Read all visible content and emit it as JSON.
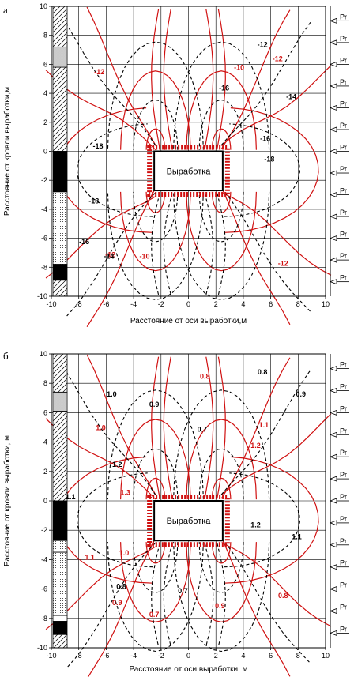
{
  "chart_data": [
    {
      "type": "contour",
      "panel_label": "а",
      "xlabel": "Расстояние от оси выработки,м",
      "ylabel": "Расстояние от кровли выработки,м",
      "xlim": [
        -10,
        10
      ],
      "ylim": [
        -10,
        10
      ],
      "xticks": [
        -10,
        -8,
        -6,
        -4,
        -2,
        0,
        2,
        4,
        6,
        8,
        10
      ],
      "yticks": [
        10,
        8,
        6,
        4,
        2,
        0,
        -2,
        -4,
        -6,
        -8,
        -10
      ],
      "grid": true,
      "opening": {
        "label": "Выработка",
        "x": [
          -2.5,
          2.5
        ],
        "y": [
          -2.7,
          0
        ]
      },
      "pr_label": "Pr",
      "pr_y": [
        9,
        7.5,
        6,
        4.5,
        3,
        1.5,
        0,
        -1.5,
        -3,
        -4.5,
        -6,
        -7.5,
        -9
      ],
      "contour_labels_red": [
        {
          "text": "-12",
          "x": -6.5,
          "y": 5.3
        },
        {
          "text": "-10",
          "x": 3.7,
          "y": 5.6
        },
        {
          "text": "-12",
          "x": 6.5,
          "y": 6.2
        },
        {
          "text": "-12",
          "x": -5.7,
          "y": -7.3
        },
        {
          "text": "-10",
          "x": -3.2,
          "y": -7.4
        },
        {
          "text": "-12",
          "x": 6.9,
          "y": -7.9
        }
      ],
      "contour_labels_black": [
        {
          "text": "-12",
          "x": 5.4,
          "y": 7.2
        },
        {
          "text": "-14",
          "x": 7.5,
          "y": 3.6
        },
        {
          "text": "-18",
          "x": -6.6,
          "y": 0.2
        },
        {
          "text": "-18",
          "x": -6.9,
          "y": -3.6
        },
        {
          "text": "-16",
          "x": 5.6,
          "y": 0.7
        },
        {
          "text": "-16",
          "x": 2.6,
          "y": 4.2
        },
        {
          "text": "-16",
          "x": -7.6,
          "y": -6.4
        },
        {
          "text": "-14",
          "x": -5.8,
          "y": -7.4
        },
        {
          "text": "-18",
          "x": 5.9,
          "y": -0.7
        }
      ]
    },
    {
      "type": "contour",
      "panel_label": "б",
      "xlabel": "Расстояние от оси выработки, м",
      "ylabel": "Расстояние от кровли выработки, м",
      "xlim": [
        -10,
        10
      ],
      "ylim": [
        -10,
        10
      ],
      "xticks": [
        -10,
        -8,
        -6,
        -4,
        -2,
        0,
        2,
        4,
        6,
        8,
        10
      ],
      "yticks": [
        10,
        8,
        6,
        4,
        2,
        0,
        -2,
        -4,
        -6,
        -8,
        -10
      ],
      "grid": true,
      "opening": {
        "label": "Выработка",
        "x": [
          -2.5,
          2.5
        ],
        "y": [
          -2.7,
          0
        ]
      },
      "pr_label": "Pr",
      "pr_y": [
        9,
        7.5,
        6,
        4.5,
        3,
        1.5,
        0,
        -1.5,
        -3,
        -4.5,
        -6,
        -7.5,
        -9
      ],
      "contour_labels_red": [
        {
          "text": "0.8",
          "x": 1.2,
          "y": 8.3
        },
        {
          "text": "1.0",
          "x": -6.4,
          "y": 4.8
        },
        {
          "text": "1.1",
          "x": 5.5,
          "y": 5.0
        },
        {
          "text": "1.2",
          "x": 4.9,
          "y": 3.6
        },
        {
          "text": "1.3",
          "x": -4.6,
          "y": 0.4
        },
        {
          "text": "1.1",
          "x": -7.2,
          "y": -4.0
        },
        {
          "text": "1.0",
          "x": -4.7,
          "y": -3.7
        },
        {
          "text": "0.9",
          "x": -5.2,
          "y": -7.1
        },
        {
          "text": "0.7",
          "x": -2.5,
          "y": -7.9
        },
        {
          "text": "0.9",
          "x": 2.3,
          "y": -7.3
        },
        {
          "text": "0.8",
          "x": 6.9,
          "y": -6.6
        }
      ],
      "contour_labels_black": [
        {
          "text": "0.9",
          "x": -2.5,
          "y": 6.4
        },
        {
          "text": "1.0",
          "x": -5.6,
          "y": 7.1
        },
        {
          "text": "0.8",
          "x": 5.4,
          "y": 8.6
        },
        {
          "text": "0.9",
          "x": 8.2,
          "y": 7.1
        },
        {
          "text": "0.7",
          "x": 1.0,
          "y": 4.7
        },
        {
          "text": "1.2",
          "x": -5.2,
          "y": 2.3
        },
        {
          "text": "1.1",
          "x": -8.6,
          "y": 0.1
        },
        {
          "text": "1.2",
          "x": 4.9,
          "y": -1.8
        },
        {
          "text": "1.1",
          "x": 7.9,
          "y": -2.6
        },
        {
          "text": "0.8",
          "x": -4.9,
          "y": -6.0
        },
        {
          "text": "0.7",
          "x": -0.4,
          "y": -6.3
        }
      ]
    }
  ]
}
